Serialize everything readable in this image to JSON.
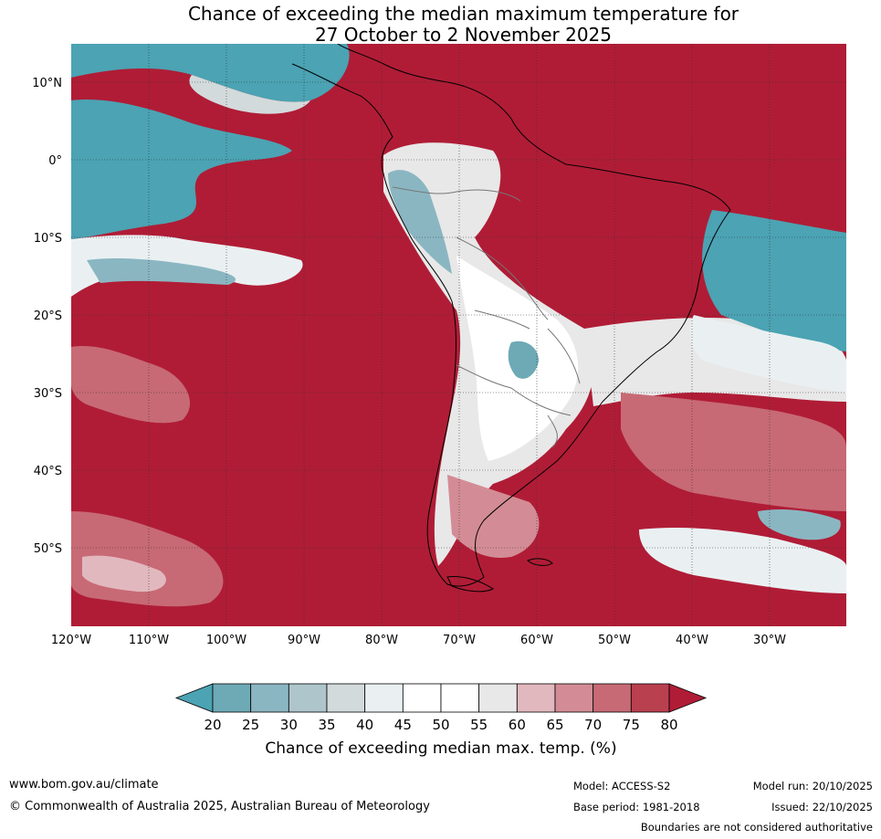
{
  "title_line1": "Chance of exceeding the median maximum temperature for",
  "title_line2": "27 October to 2 November 2025",
  "lat_labels": [
    "10°N",
    "0°",
    "10°S",
    "20°S",
    "30°S",
    "40°S",
    "50°S"
  ],
  "lon_labels": [
    "120°W",
    "110°W",
    "100°W",
    "90°W",
    "80°W",
    "70°W",
    "60°W",
    "50°W",
    "40°W",
    "30°W"
  ],
  "colorbar": {
    "ticks": [
      "20",
      "25",
      "30",
      "35",
      "40",
      "45",
      "50",
      "55",
      "60",
      "65",
      "70",
      "75",
      "80"
    ],
    "colors": [
      "#4ba3b3",
      "#6ea9b6",
      "#8ab6c2",
      "#adc5cb",
      "#d3dadc",
      "#eaf0f2",
      "#ffffff",
      "#ffffff",
      "#e8e8e8",
      "#e2b8bf",
      "#d38c95",
      "#c76a75",
      "#b9404f",
      "#b01c36"
    ],
    "title": "Chance of exceeding median max. temp. (%)"
  },
  "colors": {
    "high": "#b01c36",
    "high_mid": "#c76a75",
    "high_light": "#e2b8bf",
    "low": "#4ba3b3",
    "low_mid": "#8ab6c2",
    "neutral": "#ffffff",
    "neutral_grey": "#e8e8e8"
  },
  "footer": {
    "website": "www.bom.gov.au/climate",
    "copyright": "© Commonwealth of Australia 2025, Australian Bureau of Meteorology",
    "model": "Model: ACCESS-S2",
    "base_period": "Base period: 1981-2018",
    "model_run": "Model run: 20/10/2025",
    "issued": "Issued: 22/10/2025",
    "disclaimer": "Boundaries are not considered authoritative"
  }
}
